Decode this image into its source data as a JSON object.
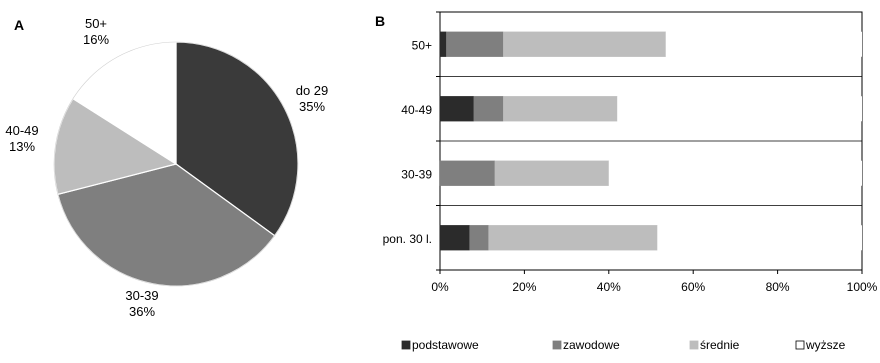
{
  "panels": {
    "a_label": "A",
    "b_label": "B"
  },
  "chart_data": [
    {
      "type": "pie",
      "panel": "A",
      "slices": [
        {
          "label": "do 29",
          "percent_label": "35%",
          "value": 35,
          "color": "#3a3a3a"
        },
        {
          "label": "30-39",
          "percent_label": "36%",
          "value": 36,
          "color": "#7f7f7f"
        },
        {
          "label": "40-49",
          "percent_label": "13%",
          "value": 13,
          "color": "#bdbdbd"
        },
        {
          "label": "50+",
          "percent_label": "16%",
          "value": 16,
          "color": "#ffffff"
        }
      ]
    },
    {
      "type": "bar",
      "orientation": "horizontal",
      "stacked": "percent",
      "panel": "B",
      "categories": [
        "50+",
        "40-49",
        "30-39",
        "pon. 30 l."
      ],
      "series": [
        {
          "name": "podstawowe",
          "color": "#2b2b2b",
          "values": [
            1.5,
            8,
            0,
            7
          ]
        },
        {
          "name": "zawodowe",
          "color": "#7f7f7f",
          "values": [
            13.5,
            7,
            13,
            4.5
          ]
        },
        {
          "name": "średnie",
          "color": "#bdbdbd",
          "values": [
            38.5,
            27,
            27,
            40
          ]
        },
        {
          "name": "wyższe",
          "color": "#ffffff",
          "values": [
            46.5,
            58,
            60,
            48.5
          ]
        }
      ],
      "xlim": [
        0,
        100
      ],
      "xticks": [
        "0%",
        "20%",
        "40%",
        "60%",
        "80%",
        "100%"
      ],
      "grid": true,
      "legend_position": "bottom"
    }
  ]
}
